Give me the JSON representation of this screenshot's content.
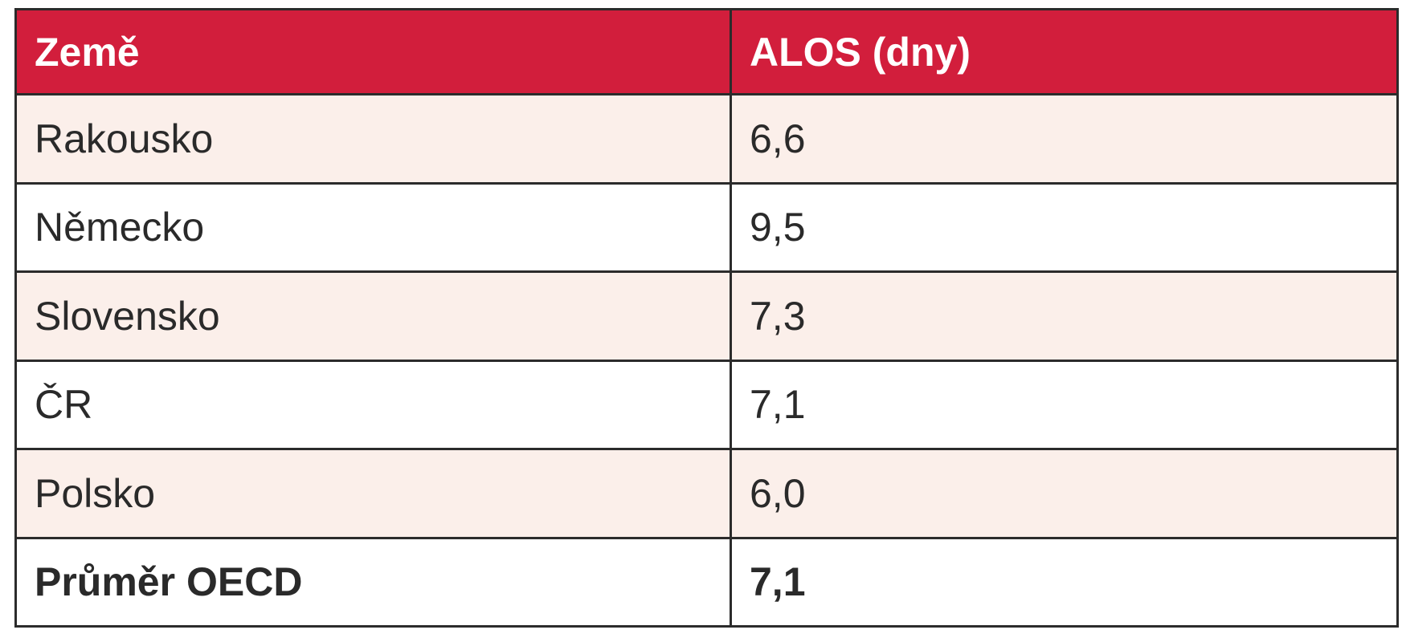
{
  "table": {
    "headers": [
      "Země",
      "ALOS (dny)"
    ],
    "rows": [
      {
        "country": "Rakousko",
        "alos": "6,6",
        "style": "shade"
      },
      {
        "country": "Německo",
        "alos": "9,5",
        "style": "plain"
      },
      {
        "country": "Slovensko",
        "alos": "7,3",
        "style": "shade"
      },
      {
        "country": "ČR",
        "alos": "7,1",
        "style": "plain"
      },
      {
        "country": "Polsko",
        "alos": "6,0",
        "style": "shade"
      },
      {
        "country": "Průměr OECD",
        "alos": "7,1",
        "style": "total"
      }
    ]
  },
  "colors": {
    "header_bg": "#d21e3c",
    "header_text": "#ffffff",
    "shade_row_bg": "#fbefea",
    "border": "#2b2b2b"
  }
}
